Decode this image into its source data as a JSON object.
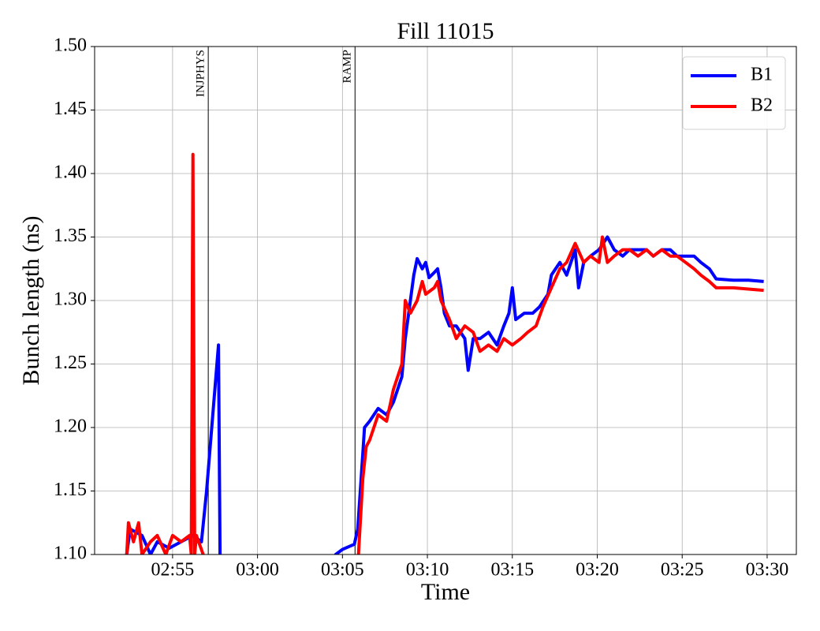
{
  "chart_data": {
    "type": "line",
    "title": "Fill 11015",
    "x_label": "Time",
    "y_label": "Bunch length (ns)",
    "xlim": [
      170.41,
      211.72
    ],
    "xticks": [
      {
        "value": 175,
        "label": "02:55"
      },
      {
        "value": 180,
        "label": "03:00"
      },
      {
        "value": 185,
        "label": "03:05"
      },
      {
        "value": 190,
        "label": "03:10"
      },
      {
        "value": 195,
        "label": "03:15"
      },
      {
        "value": 200,
        "label": "03:20"
      },
      {
        "value": 205,
        "label": "03:25"
      },
      {
        "value": 210,
        "label": "03:30"
      }
    ],
    "ylim": [
      1.1,
      1.5
    ],
    "yticks": [
      {
        "value": 1.1,
        "label": "1.10"
      },
      {
        "value": 1.15,
        "label": "1.15"
      },
      {
        "value": 1.2,
        "label": "1.20"
      },
      {
        "value": 1.25,
        "label": "1.25"
      },
      {
        "value": 1.3,
        "label": "1.30"
      },
      {
        "value": 1.35,
        "label": "1.35"
      },
      {
        "value": 1.4,
        "label": "1.40"
      },
      {
        "value": 1.45,
        "label": "1.45"
      },
      {
        "value": 1.5,
        "label": "1.50"
      }
    ],
    "grid": true,
    "legend": "upper-right",
    "annotations": [
      {
        "text": "INJPHYS",
        "x": 177.1
      },
      {
        "text": "RAMP",
        "x": 185.74
      }
    ],
    "series": [
      {
        "name": "B1",
        "color": "#0000ff",
        "x": [
          172.3,
          172.5,
          173.2,
          173.7,
          174.1,
          174.8,
          175.5,
          176.2,
          176.7,
          177.0,
          177.7,
          177.8,
          184.3,
          184.6,
          185.0,
          185.7,
          185.9,
          186.2,
          186.3,
          186.6,
          187.1,
          187.6,
          188.0,
          188.5,
          188.7,
          189.0,
          189.2,
          189.4,
          189.7,
          189.9,
          190.1,
          190.4,
          190.6,
          190.8,
          191.0,
          191.3,
          191.7,
          192.2,
          192.4,
          192.7,
          193.1,
          193.6,
          194.1,
          194.5,
          194.8,
          195.0,
          195.2,
          195.7,
          196.2,
          196.6,
          197.1,
          197.3,
          197.8,
          198.2,
          198.7,
          198.9,
          199.2,
          199.6,
          200.1,
          200.6,
          201.0,
          201.5,
          201.9,
          202.4,
          202.9,
          203.3,
          203.8,
          204.3,
          204.7,
          205.2,
          205.7,
          206.1,
          206.6,
          207.0,
          208.0,
          208.9,
          209.8
        ],
        "values": [
          1.1,
          1.12,
          1.115,
          1.1,
          1.11,
          1.105,
          1.11,
          1.115,
          1.11,
          1.15,
          1.265,
          1.09,
          1.09,
          1.1,
          1.104,
          1.108,
          1.12,
          1.18,
          1.2,
          1.205,
          1.215,
          1.21,
          1.22,
          1.24,
          1.27,
          1.3,
          1.32,
          1.333,
          1.325,
          1.33,
          1.318,
          1.322,
          1.325,
          1.31,
          1.29,
          1.28,
          1.28,
          1.27,
          1.245,
          1.27,
          1.27,
          1.275,
          1.265,
          1.28,
          1.29,
          1.31,
          1.285,
          1.29,
          1.29,
          1.295,
          1.305,
          1.32,
          1.33,
          1.32,
          1.34,
          1.31,
          1.33,
          1.335,
          1.34,
          1.35,
          1.34,
          1.335,
          1.34,
          1.34,
          1.34,
          1.335,
          1.34,
          1.34,
          1.335,
          1.335,
          1.335,
          1.33,
          1.325,
          1.317,
          1.316,
          1.316,
          1.315
        ]
      },
      {
        "name": "B2",
        "color": "#ff0000",
        "x": [
          172.3,
          172.4,
          172.7,
          173.0,
          173.2,
          173.7,
          174.1,
          174.6,
          175.0,
          175.5,
          176.0,
          176.1,
          176.2,
          176.3,
          176.4,
          176.8,
          176.9,
          185.9,
          186.2,
          186.4,
          186.6,
          187.1,
          187.6,
          188.0,
          188.5,
          188.7,
          189.0,
          189.4,
          189.7,
          189.9,
          190.4,
          190.6,
          190.8,
          191.3,
          191.7,
          192.2,
          192.7,
          193.1,
          193.6,
          194.1,
          194.5,
          195.0,
          195.5,
          195.9,
          196.4,
          196.8,
          197.3,
          197.8,
          198.2,
          198.7,
          199.2,
          199.6,
          200.1,
          200.3,
          200.6,
          201.0,
          201.5,
          201.9,
          202.4,
          202.9,
          203.3,
          203.8,
          204.3,
          204.7,
          205.2,
          205.7,
          206.1,
          206.6,
          207.0,
          208.0,
          208.9,
          209.8
        ],
        "values": [
          1.1,
          1.125,
          1.11,
          1.125,
          1.1,
          1.11,
          1.115,
          1.1,
          1.115,
          1.11,
          1.115,
          1.1,
          1.415,
          1.1,
          1.115,
          1.1,
          1.09,
          1.09,
          1.16,
          1.185,
          1.19,
          1.21,
          1.205,
          1.23,
          1.25,
          1.3,
          1.29,
          1.3,
          1.315,
          1.305,
          1.31,
          1.315,
          1.3,
          1.285,
          1.27,
          1.28,
          1.275,
          1.26,
          1.265,
          1.26,
          1.27,
          1.265,
          1.27,
          1.275,
          1.28,
          1.295,
          1.31,
          1.325,
          1.33,
          1.345,
          1.33,
          1.335,
          1.33,
          1.35,
          1.33,
          1.335,
          1.34,
          1.34,
          1.335,
          1.34,
          1.335,
          1.34,
          1.335,
          1.335,
          1.33,
          1.325,
          1.32,
          1.315,
          1.31,
          1.31,
          1.309,
          1.308
        ]
      }
    ]
  }
}
